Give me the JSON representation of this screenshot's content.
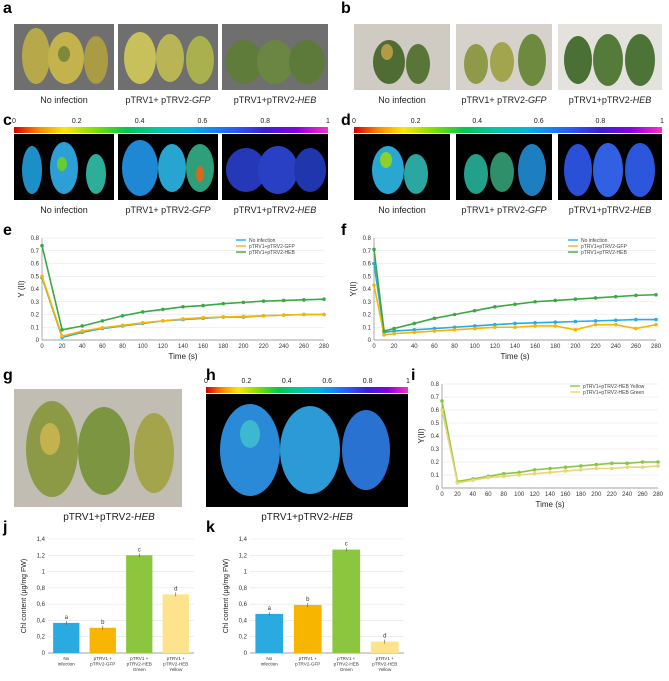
{
  "panels": {
    "a": {
      "label": "a",
      "captions": [
        "No infection",
        "pTRV1+ pTRV2-",
        "pTRV1+pTRV2-"
      ],
      "italic": [
        "",
        "GFP",
        "HEB"
      ]
    },
    "b": {
      "label": "b",
      "captions": [
        "No infection",
        "pTRV1+ pTRV2-",
        "pTRV1+pTRV2-"
      ],
      "italic": [
        "",
        "GFP",
        "HEB"
      ]
    },
    "c": {
      "label": "c",
      "captions": [
        "No infection",
        "pTRV1+ pTRV2-",
        "pTRV1+pTRV2-"
      ],
      "italic": [
        "",
        "GFP",
        "HEB"
      ]
    },
    "d": {
      "label": "d",
      "captions": [
        "No infection",
        "pTRV1+ pTRV2-",
        "pTRV1+pTRV2-"
      ],
      "italic": [
        "",
        "GFP",
        "HEB"
      ]
    },
    "e": {
      "label": "e"
    },
    "f": {
      "label": "f"
    },
    "g": {
      "label": "g",
      "caption": "pTRV1+pTRV2-",
      "italic": "HEB"
    },
    "h": {
      "label": "h",
      "caption": "pTRV1+pTRV2-",
      "italic": "HEB"
    },
    "i": {
      "label": "i"
    },
    "j": {
      "label": "j"
    },
    "k": {
      "label": "k"
    }
  },
  "colorbar_ticks": [
    "0",
    "0.2",
    "0.4",
    "0.6",
    "0.8",
    "1"
  ],
  "colors": {
    "blue": "#29abe2",
    "orange": "#f7b500",
    "green": "#3aa845",
    "lightgreen": "#8cc63f",
    "yellow": "#fde38c",
    "lightyellow": "#e8d77a"
  },
  "chart_data": [
    {
      "id": "e",
      "type": "line",
      "xlabel": "Time (s)",
      "ylabel": "Y (II)",
      "xlim": [
        0,
        280
      ],
      "ylim": [
        0,
        0.8
      ],
      "xticks": [
        0,
        20,
        40,
        60,
        80,
        100,
        120,
        140,
        160,
        180,
        200,
        220,
        240,
        260,
        280
      ],
      "yticks": [
        0,
        0.1,
        0.2,
        0.3,
        0.4,
        0.5,
        0.6,
        0.7,
        0.8
      ],
      "ytick_labels": [
        "0",
        "0.1",
        "0.2",
        "0.3",
        "0.4",
        "0.5",
        "0.6",
        "0.7",
        "0.8"
      ],
      "legend": "top-right",
      "series": [
        {
          "name": "No infection",
          "color": "#29abe2",
          "x": [
            0,
            20,
            40,
            60,
            80,
            100,
            120,
            140,
            160,
            180,
            200,
            220,
            240,
            260,
            280
          ],
          "y": [
            0.49,
            0.02,
            0.06,
            0.09,
            0.11,
            0.13,
            0.15,
            0.16,
            0.17,
            0.18,
            0.18,
            0.19,
            0.195,
            0.2,
            0.2
          ]
        },
        {
          "name": "pTRV1+pTRV2-GFP",
          "color": "#f7b500",
          "x": [
            0,
            20,
            40,
            60,
            80,
            100,
            120,
            140,
            160,
            180,
            200,
            220,
            240,
            260,
            280
          ],
          "y": [
            0.5,
            0.03,
            0.07,
            0.095,
            0.115,
            0.135,
            0.15,
            0.165,
            0.175,
            0.18,
            0.185,
            0.19,
            0.195,
            0.2,
            0.2
          ]
        },
        {
          "name": "pTRV1+pTRV2-HEB",
          "color": "#3aa845",
          "x": [
            0,
            20,
            40,
            60,
            80,
            100,
            120,
            140,
            160,
            180,
            200,
            220,
            240,
            260,
            280
          ],
          "y": [
            0.74,
            0.08,
            0.11,
            0.15,
            0.19,
            0.22,
            0.24,
            0.26,
            0.27,
            0.285,
            0.295,
            0.305,
            0.31,
            0.315,
            0.32
          ]
        }
      ]
    },
    {
      "id": "f",
      "type": "line",
      "xlabel": "Time (s)",
      "ylabel": "Y(II)",
      "xlim": [
        0,
        280
      ],
      "ylim": [
        0,
        0.8
      ],
      "xticks": [
        0,
        20,
        40,
        60,
        80,
        100,
        120,
        140,
        160,
        180,
        200,
        220,
        240,
        260,
        280
      ],
      "yticks": [
        0,
        0.1,
        0.2,
        0.3,
        0.4,
        0.5,
        0.6,
        0.7,
        0.8
      ],
      "ytick_labels": [
        "0",
        "0.1",
        "0.2",
        "0.3",
        "0.4",
        "0.5",
        "0.6",
        "0.7",
        "0.8"
      ],
      "legend": "top-right",
      "series": [
        {
          "name": "No infection",
          "color": "#29abe2",
          "x": [
            0,
            10,
            20,
            40,
            60,
            80,
            100,
            120,
            140,
            160,
            180,
            200,
            220,
            240,
            260,
            280
          ],
          "y": [
            0.6,
            0.06,
            0.07,
            0.08,
            0.09,
            0.1,
            0.11,
            0.12,
            0.13,
            0.135,
            0.14,
            0.145,
            0.15,
            0.155,
            0.16,
            0.16
          ]
        },
        {
          "name": "pTRV1+pTRV2-GFP",
          "color": "#f7b500",
          "x": [
            0,
            10,
            20,
            40,
            60,
            80,
            100,
            120,
            140,
            160,
            180,
            200,
            220,
            240,
            260,
            280
          ],
          "y": [
            0.43,
            0.04,
            0.05,
            0.06,
            0.07,
            0.08,
            0.09,
            0.1,
            0.1,
            0.11,
            0.11,
            0.08,
            0.12,
            0.12,
            0.09,
            0.12
          ]
        },
        {
          "name": "pTRV1+pTRV2-HEB",
          "color": "#3aa845",
          "x": [
            0,
            10,
            20,
            40,
            60,
            80,
            100,
            120,
            140,
            160,
            180,
            200,
            220,
            240,
            260,
            280
          ],
          "y": [
            0.71,
            0.07,
            0.09,
            0.13,
            0.17,
            0.2,
            0.23,
            0.26,
            0.28,
            0.3,
            0.31,
            0.32,
            0.33,
            0.34,
            0.35,
            0.355
          ]
        }
      ]
    },
    {
      "id": "i",
      "type": "line",
      "xlabel": "Time (s)",
      "ylabel": "Y(II)",
      "xlim": [
        0,
        280
      ],
      "ylim": [
        0,
        0.8
      ],
      "xticks": [
        0,
        20,
        40,
        60,
        80,
        100,
        120,
        140,
        160,
        180,
        200,
        220,
        240,
        260,
        280
      ],
      "yticks": [
        0,
        0.1,
        0.2,
        0.3,
        0.4,
        0.5,
        0.6,
        0.7,
        0.8
      ],
      "ytick_labels": [
        "0",
        "0.1",
        "0.2",
        "0.3",
        "0.4",
        "0.5",
        "0.6",
        "0.7",
        "0.8"
      ],
      "legend": "top-right",
      "series": [
        {
          "name": "pTRV1+pTRV2-HEB Yellow",
          "color": "#8cc63f",
          "x": [
            0,
            20,
            40,
            60,
            80,
            100,
            120,
            140,
            160,
            180,
            200,
            220,
            240,
            260,
            280
          ],
          "y": [
            0.67,
            0.05,
            0.07,
            0.09,
            0.11,
            0.12,
            0.14,
            0.15,
            0.16,
            0.17,
            0.18,
            0.19,
            0.19,
            0.2,
            0.2
          ]
        },
        {
          "name": "pTRV1+pTRV2-HEB Green",
          "color": "#e8d77a",
          "x": [
            0,
            20,
            40,
            60,
            80,
            100,
            120,
            140,
            160,
            180,
            200,
            220,
            240,
            260,
            280
          ],
          "y": [
            0.6,
            0.04,
            0.06,
            0.08,
            0.09,
            0.1,
            0.11,
            0.12,
            0.13,
            0.14,
            0.15,
            0.15,
            0.16,
            0.16,
            0.17
          ]
        }
      ]
    },
    {
      "id": "j",
      "type": "bar",
      "ylabel": "Chl content (µg/mg FW)",
      "ylim": [
        0,
        1.4
      ],
      "yticks": [
        0,
        0.2,
        0.4,
        0.6,
        0.8,
        1,
        1.2,
        1.4
      ],
      "ytick_labels": [
        "0",
        "0,2",
        "0,4",
        "0,6",
        "0,8",
        "1",
        "1,2",
        "1,4"
      ],
      "categories": [
        [
          "No",
          "infection"
        ],
        [
          "pTRV1 +",
          "pTRV2-GFP"
        ],
        [
          "pTRV1 +",
          "pTRV2-HEB",
          "Green"
        ],
        [
          "pTRV1 +",
          "pTRV2-HEB",
          "Yellow"
        ]
      ],
      "values": [
        0.37,
        0.31,
        1.2,
        0.72
      ],
      "letters": [
        "a",
        "b",
        "c",
        "d"
      ],
      "colors": [
        "#29abe2",
        "#f7b500",
        "#8cc63f",
        "#fde38c"
      ]
    },
    {
      "id": "k",
      "type": "bar",
      "ylabel": "Chl content (µg/mg FW)",
      "ylim": [
        0,
        1.4
      ],
      "yticks": [
        0,
        0.2,
        0.4,
        0.6,
        0.8,
        1,
        1.2,
        1.4
      ],
      "ytick_labels": [
        "0",
        "0,2",
        "0,4",
        "0,6",
        "0,8",
        "1",
        "1,2",
        "1,4"
      ],
      "categories": [
        [
          "No",
          "infection"
        ],
        [
          "pTRV1 +",
          "pTRV2-GFP"
        ],
        [
          "pTRV1 +",
          "pTRV2-HEB",
          "Green"
        ],
        [
          "pTRV1 +",
          "pTRV2-HEB",
          "Yellow"
        ]
      ],
      "values": [
        0.48,
        0.59,
        1.27,
        0.14
      ],
      "letters": [
        "a",
        "b",
        "c",
        "d"
      ],
      "colors": [
        "#29abe2",
        "#f7b500",
        "#8cc63f",
        "#fde38c"
      ]
    }
  ]
}
